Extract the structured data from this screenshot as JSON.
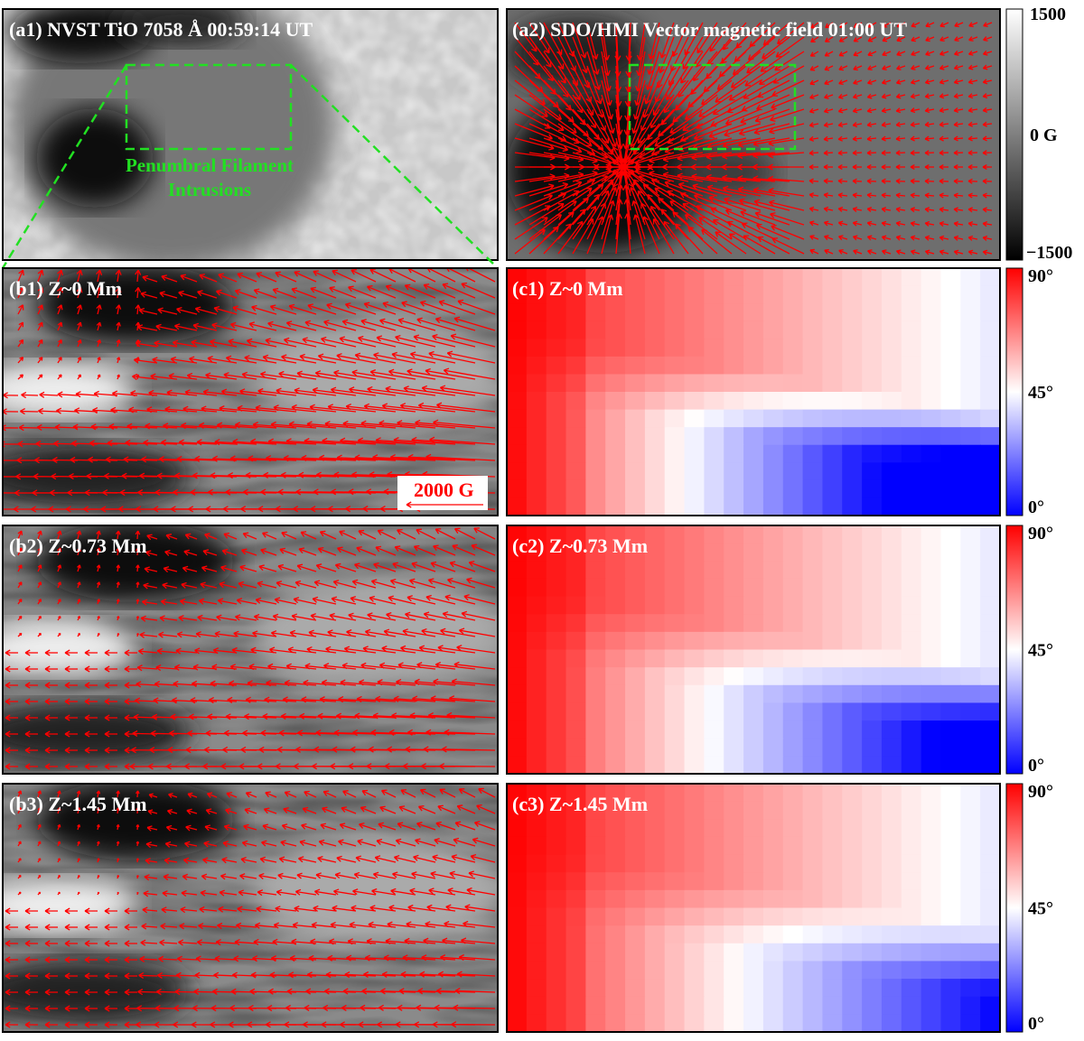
{
  "panels": {
    "a1": {
      "label": "(a1) NVST TiO 7058 Å  00:59:14 UT",
      "annotation": [
        "Penumbral Filament",
        "Intrusions"
      ]
    },
    "a2": {
      "label": "(a2) SDO/HMI Vector magnetic field 01:00 UT"
    },
    "b1": {
      "label": "(b1) Z~0 Mm",
      "scale_arrow": "2000 G"
    },
    "b2": {
      "label": "(b2) Z~0.73 Mm"
    },
    "b3": {
      "label": "(b3) Z~1.45 Mm"
    },
    "c1": {
      "label": "(c1) Z~0 Mm"
    },
    "c2": {
      "label": "(c2) Z~0.73 Mm"
    },
    "c3": {
      "label": "(c3) Z~1.45 Mm"
    }
  },
  "colorbars": {
    "a2": [
      "1500",
      "0 G",
      "−1500"
    ],
    "c1": [
      "90°",
      "45°",
      "0°"
    ],
    "c2": [
      "90°",
      "45°",
      "0°"
    ],
    "c3": [
      "90°",
      "45°",
      "0°"
    ]
  }
}
